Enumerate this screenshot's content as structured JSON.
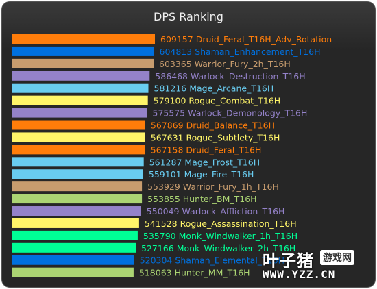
{
  "chart_data": {
    "type": "bar",
    "orientation": "horizontal",
    "title": "DPS Ranking",
    "xlim": [
      0,
      609157
    ],
    "categories": [
      "Druid_Feral_T16H_Adv_Rotation",
      "Shaman_Enhancement_T16H",
      "Warrior_Fury_2h_T16H",
      "Warlock_Destruction_T16H",
      "Mage_Arcane_T16H",
      "Rogue_Combat_T16H",
      "Warlock_Demonology_T16H",
      "Druid_Balance_T16H",
      "Rogue_Subtlety_T16H",
      "Druid_Feral_T16H",
      "Mage_Frost_T16H",
      "Mage_Fire_T16H",
      "Warrior_Fury_1h_T16H",
      "Hunter_BM_T16H",
      "Warlock_Affliction_T16H",
      "Rogue_Assassination_T16H",
      "Monk_Windwalker_1h_T16H",
      "Monk_Windwalker_2h_T16H",
      "Shaman_Elemental_T16H",
      "Hunter_MM_T16H"
    ],
    "values": [
      609157,
      604813,
      603365,
      586468,
      581216,
      579100,
      575575,
      567869,
      567631,
      567158,
      561287,
      559101,
      553929,
      553855,
      550049,
      541528,
      535790,
      527166,
      520304,
      518063
    ],
    "colors": [
      "#ff7d0a",
      "#0070de",
      "#c79c6e",
      "#9482c9",
      "#69ccf0",
      "#fff569",
      "#9482c9",
      "#ff7d0a",
      "#fff569",
      "#ff7d0a",
      "#69ccf0",
      "#69ccf0",
      "#c79c6e",
      "#abd473",
      "#9482c9",
      "#fff569",
      "#00ff96",
      "#00ff96",
      "#0070de",
      "#abd473"
    ]
  },
  "watermark": {
    "logo": "叶子猪",
    "badge": "游戏网",
    "url": "WWW.YZZ.CN"
  }
}
